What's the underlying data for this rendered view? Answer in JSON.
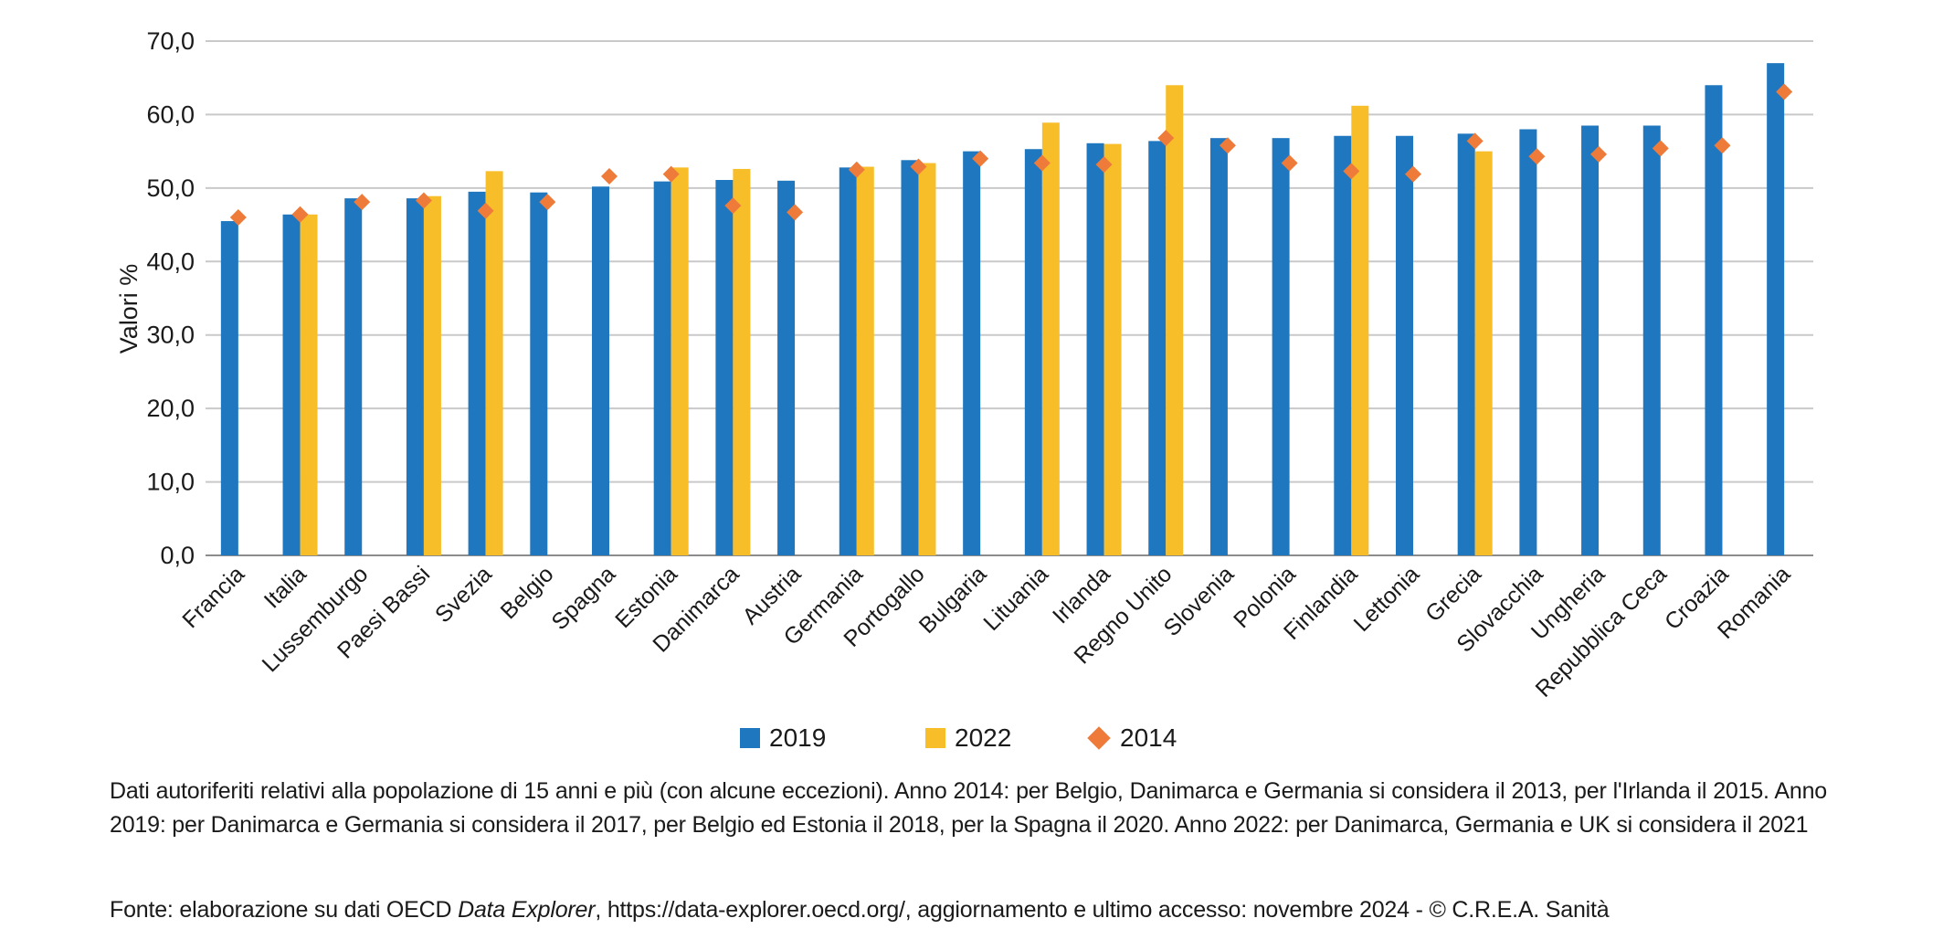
{
  "chart_data": {
    "type": "bar",
    "ylabel": "Valori %",
    "ylim": [
      0,
      70
    ],
    "yticks": [
      "0,0",
      "10,0",
      "20,0",
      "30,0",
      "40,0",
      "50,0",
      "60,0",
      "70,0"
    ],
    "grid": true,
    "legend_position": "bottom",
    "categories": [
      "Francia",
      "Italia",
      "Lussemburgo",
      "Paesi Bassi",
      "Svezia",
      "Belgio",
      "Spagna",
      "Estonia",
      "Danimarca",
      "Austria",
      "Germania",
      "Portogallo",
      "Bulgaria",
      "Lituania",
      "Irlanda",
      "Regno Unito",
      "Slovenia",
      "Polonia",
      "Finlandia",
      "Lettonia",
      "Grecia",
      "Slovacchia",
      "Ungheria",
      "Repubblica Ceca",
      "Croazia",
      "Romania"
    ],
    "series": [
      {
        "name": "2019",
        "kind": "bar",
        "color": "#1F77BF",
        "values": [
          45.5,
          46.4,
          48.6,
          48.6,
          49.5,
          49.4,
          50.2,
          50.9,
          51.1,
          51.0,
          52.8,
          53.8,
          55.0,
          55.3,
          56.1,
          56.4,
          56.8,
          56.8,
          57.1,
          57.1,
          57.4,
          58.0,
          58.5,
          58.5,
          64.0,
          67.0
        ]
      },
      {
        "name": "2022",
        "kind": "bar",
        "color": "#F7BE2A",
        "values": [
          null,
          46.4,
          null,
          48.9,
          52.3,
          null,
          null,
          52.8,
          52.6,
          null,
          52.9,
          53.4,
          null,
          58.9,
          56.0,
          64.0,
          null,
          null,
          61.2,
          null,
          55.0,
          null,
          null,
          null,
          null,
          null
        ]
      },
      {
        "name": "2014",
        "kind": "marker",
        "color": "#EE7B3A",
        "values": [
          46.0,
          46.4,
          48.1,
          48.3,
          46.9,
          48.1,
          51.6,
          51.9,
          47.6,
          46.7,
          52.5,
          52.9,
          54.0,
          53.4,
          53.2,
          56.8,
          55.8,
          53.4,
          52.3,
          51.9,
          56.4,
          54.3,
          54.6,
          55.4,
          55.8,
          63.1
        ]
      }
    ]
  },
  "notes": {
    "main": "Dati autoriferiti relativi alla popolazione di 15 anni e più (con alcune eccezioni). Anno 2014: per Belgio, Danimarca e Germania si considera il 2013, per l'Irlanda il 2015. Anno 2019: per Danimarca e Germania si considera il 2017, per Belgio ed Estonia il 2018, per la Spagna il 2020. Anno 2022: per Danimarca, Germania e UK si considera il 2021",
    "source_prefix": "Fonte: elaborazione su dati OECD ",
    "source_italic": "Data Explorer",
    "source_suffix": ", https://data-explorer.oecd.org/, aggiornamento e ultimo accesso: novembre 2024 - © C.R.E.A. Sanità"
  }
}
